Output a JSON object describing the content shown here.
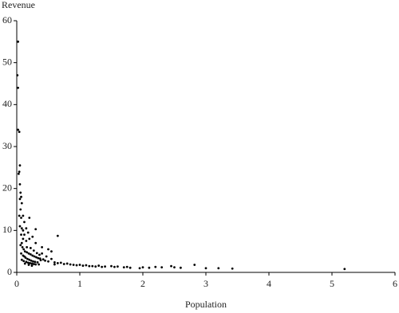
{
  "chart_data": {
    "type": "scatter",
    "y_label": "Revenue",
    "x_label": "Population",
    "color": "#000000",
    "xlim": [
      0,
      6
    ],
    "xticks": [
      0,
      1,
      2,
      3,
      4,
      5,
      6
    ],
    "ylim": [
      0,
      60
    ],
    "yticks": [
      0,
      10,
      20,
      30,
      40,
      50,
      60
    ],
    "grid": false,
    "x": [
      0.02,
      0.01,
      0.02,
      0.02,
      0.04,
      0.05,
      0.04,
      0.03,
      0.05,
      0.06,
      0.07,
      0.05,
      0.08,
      0.06,
      0.04,
      0.07,
      0.1,
      0.12,
      0.2,
      0.05,
      0.08,
      0.1,
      0.15,
      0.3,
      0.07,
      0.12,
      0.18,
      0.25,
      0.65,
      0.1,
      0.2,
      0.3,
      0.08,
      0.15,
      0.4,
      0.5,
      0.55,
      0.06,
      0.09,
      0.11,
      0.13,
      0.16,
      0.19,
      0.22,
      0.25,
      0.28,
      0.31,
      0.34,
      0.37,
      0.42,
      0.07,
      0.1,
      0.12,
      0.14,
      0.17,
      0.2,
      0.23,
      0.26,
      0.29,
      0.33,
      0.08,
      0.11,
      0.15,
      0.18,
      0.21,
      0.24,
      0.27,
      0.3,
      0.35,
      0.45,
      0.5,
      0.55,
      0.6,
      0.65,
      0.7,
      0.75,
      0.8,
      0.85,
      0.9,
      0.95,
      1.0,
      1.05,
      1.1,
      1.15,
      1.2,
      1.25,
      1.3,
      1.35,
      1.4,
      1.5,
      1.55,
      1.6,
      1.7,
      1.75,
      1.8,
      1.95,
      2.0,
      2.1,
      2.2,
      2.3,
      2.45,
      2.5,
      2.6,
      2.82,
      3.0,
      3.2,
      3.42,
      5.2,
      0.4,
      0.38,
      0.16,
      0.22,
      0.27,
      0.32,
      0.36,
      0.47,
      0.13,
      0.19,
      0.24,
      0.6
    ],
    "values": [
      55,
      47,
      44,
      34,
      33.5,
      25.5,
      24,
      23.5,
      21,
      19,
      18,
      17.5,
      16.5,
      15,
      13.5,
      13,
      13.5,
      12,
      13,
      11,
      10.5,
      10,
      10.5,
      10.3,
      9,
      9,
      9.5,
      8.5,
      8.7,
      8,
      8,
      7,
      7,
      7.5,
      6,
      5.5,
      5,
      6.5,
      6,
      5.5,
      5,
      4.8,
      4.5,
      4.3,
      4,
      3.8,
      3.6,
      3.4,
      3.3,
      3.1,
      4.5,
      4,
      3.8,
      3.5,
      3.2,
      3,
      2.8,
      2.6,
      2.5,
      2.4,
      3,
      2.7,
      2.5,
      2.3,
      2.2,
      2.1,
      2,
      1.9,
      1.9,
      2.8,
      2.6,
      3.2,
      2.4,
      2.2,
      2.3,
      2,
      2.1,
      1.9,
      1.8,
      1.7,
      1.8,
      1.6,
      1.7,
      1.5,
      1.5,
      1.4,
      1.6,
      1.3,
      1.4,
      1.5,
      1.3,
      1.4,
      1.2,
      1.3,
      1.1,
      1.0,
      1.2,
      1.1,
      1.3,
      1.2,
      1.5,
      1.2,
      1.1,
      1.8,
      1.0,
      1.0,
      0.9,
      0.8,
      4.5,
      2.9,
      6,
      5.8,
      5.2,
      4.6,
      4.2,
      3.8,
      2.1,
      1.8,
      1.6,
      1.9
    ]
  }
}
